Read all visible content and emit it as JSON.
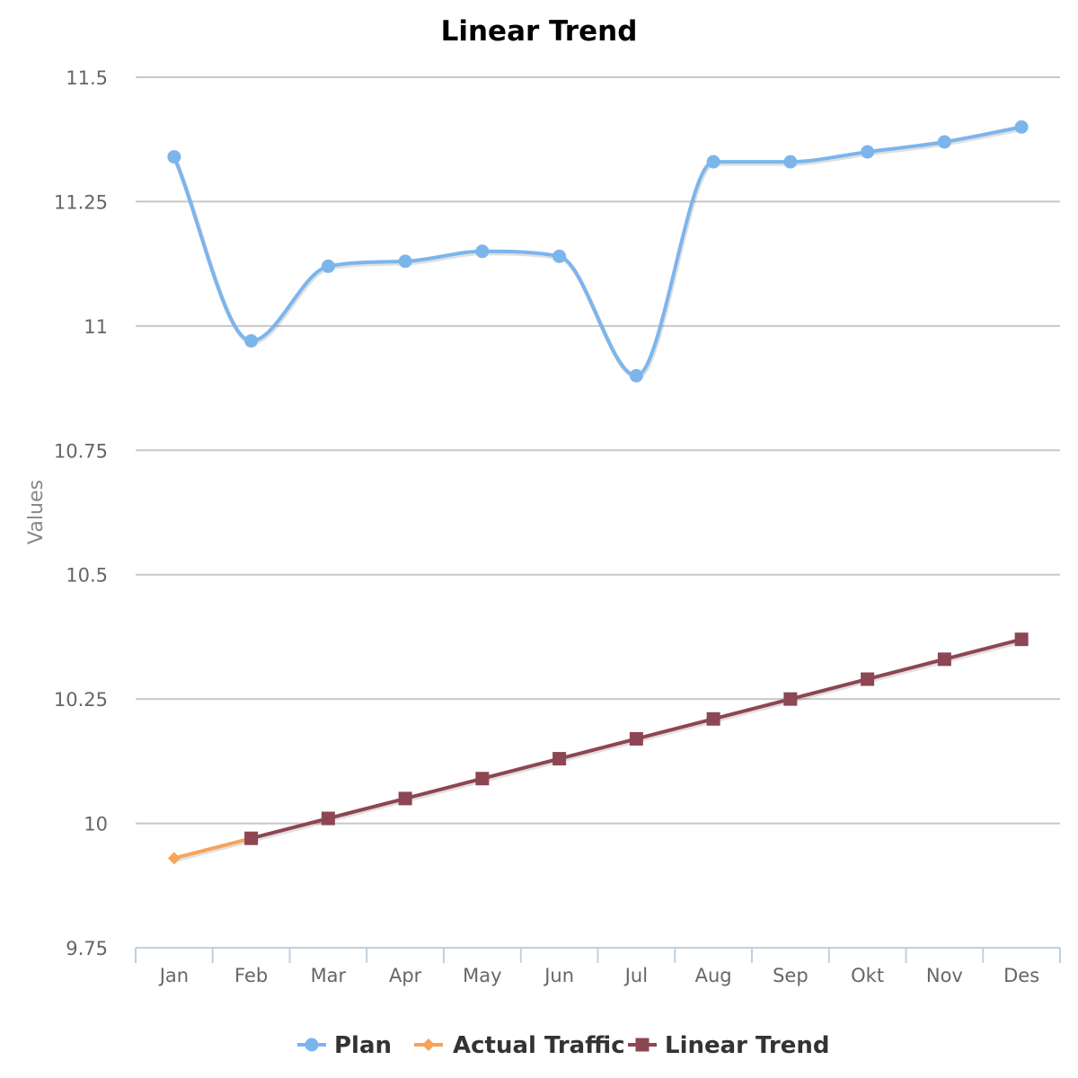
{
  "chart_data": {
    "type": "line",
    "title": "Linear Trend",
    "xlabel": "",
    "ylabel": "Values",
    "categories": [
      "Jan",
      "Feb",
      "Mar",
      "Apr",
      "May",
      "Jun",
      "Jul",
      "Aug",
      "Sep",
      "Okt",
      "Nov",
      "Des"
    ],
    "ylim": [
      9.75,
      11.5
    ],
    "yticks": [
      9.75,
      10,
      10.25,
      10.5,
      10.75,
      11,
      11.25,
      11.5
    ],
    "ytick_labels": [
      "9.75",
      "10",
      "10.25",
      "10.5",
      "10.75",
      "11",
      "11.25",
      "11.5"
    ],
    "grid": true,
    "legend_position": "bottom",
    "series": [
      {
        "name": "Plan",
        "color": "#7cb5ec",
        "marker": "circle",
        "smooth": true,
        "values": [
          11.34,
          10.97,
          11.12,
          11.13,
          11.15,
          11.14,
          10.9,
          11.33,
          11.33,
          11.35,
          11.37,
          11.4
        ]
      },
      {
        "name": "Actual Traffic",
        "color": "#f7a35c",
        "marker": "diamond",
        "smooth": false,
        "values": [
          9.93,
          9.97,
          null,
          null,
          null,
          null,
          null,
          null,
          null,
          null,
          null,
          null
        ]
      },
      {
        "name": "Linear Trend",
        "color": "#8d4653",
        "marker": "square",
        "smooth": false,
        "values": [
          null,
          9.97,
          10.01,
          10.05,
          10.09,
          10.13,
          10.17,
          10.21,
          10.25,
          10.29,
          10.33,
          10.37
        ]
      }
    ]
  }
}
